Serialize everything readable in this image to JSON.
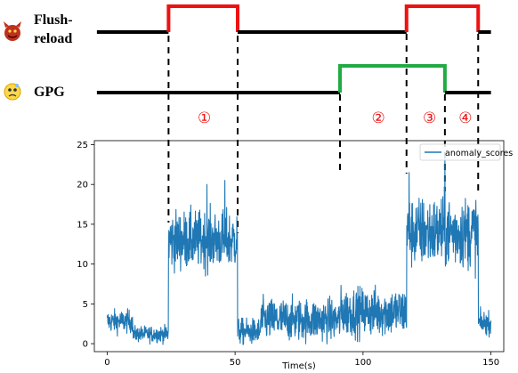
{
  "timeline": {
    "rows": [
      {
        "label_lines": [
          "Flush-",
          "reload"
        ],
        "icon": "devil-face-icon",
        "color": "#ee1111",
        "segments": [
          [
            24,
            51
          ],
          [
            117,
            145
          ]
        ]
      },
      {
        "label_lines": [
          "GPG"
        ],
        "icon": "worried-face-icon",
        "color": "#22aa44",
        "segments": [
          [
            91,
            132
          ]
        ]
      }
    ],
    "phases": [
      {
        "label": "①",
        "x": 38
      },
      {
        "label": "②",
        "x": 106
      },
      {
        "label": "③",
        "x": 126
      },
      {
        "label": "④",
        "x": 140
      }
    ],
    "phase_color": "#ee1111",
    "boundaries": [
      24,
      51,
      91,
      117,
      132,
      145
    ]
  },
  "chart_data": {
    "type": "line",
    "xlabel": "Time(s)",
    "ylabel": "",
    "xlim": [
      -5,
      155
    ],
    "ylim": [
      -1,
      25.5
    ],
    "xticks": [
      0,
      50,
      100,
      150
    ],
    "yticks": [
      0,
      5,
      10,
      15,
      20,
      25
    ],
    "grid": false,
    "legend": "top-right",
    "series": [
      {
        "name": "anomaly_scores",
        "color": "#1f77b4",
        "segments": [
          {
            "from": 0,
            "to": 10,
            "mean": 2.8,
            "noise": 0.7
          },
          {
            "from": 10,
            "to": 24,
            "mean": 1.2,
            "noise": 0.5
          },
          {
            "from": 24,
            "to": 51,
            "mean": 13.0,
            "noise": 1.8
          },
          {
            "from": 51,
            "to": 60,
            "mean": 1.5,
            "noise": 0.8
          },
          {
            "from": 60,
            "to": 91,
            "mean": 3.0,
            "noise": 1.3
          },
          {
            "from": 91,
            "to": 117,
            "mean": 4.0,
            "noise": 1.5
          },
          {
            "from": 117,
            "to": 145,
            "mean": 14.0,
            "noise": 2.2
          },
          {
            "from": 145,
            "to": 150,
            "mean": 2.6,
            "noise": 0.7
          }
        ],
        "peaks": [
          [
            39,
            20.0
          ],
          [
            46,
            20.5
          ],
          [
            118,
            21.5
          ],
          [
            132,
            23.5
          ],
          [
            133,
            16.0
          ]
        ]
      }
    ]
  }
}
